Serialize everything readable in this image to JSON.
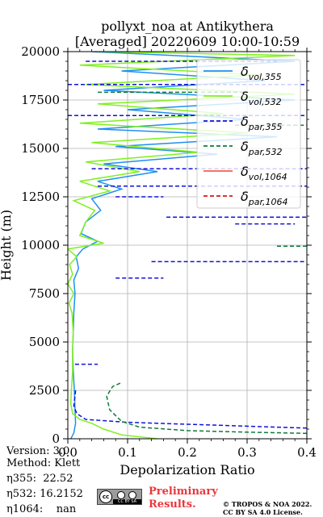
{
  "chart_data": {
    "type": "line",
    "title": "pollyxt_noa at Antikythera",
    "subtitle": "[Averaged] 20220609 10:00-10:59",
    "xlabel": "Depolarization Ratio",
    "ylabel": "Height (m)",
    "xlim": [
      0,
      0.4
    ],
    "ylim": [
      0,
      20000
    ],
    "xticks": [
      0.0,
      0.1,
      0.2,
      0.3,
      0.4
    ],
    "xtick_labels": [
      "0.0",
      "0.1",
      "0.2",
      "0.3",
      "0.4"
    ],
    "yticks": [
      0,
      2500,
      5000,
      7500,
      10000,
      12500,
      15000,
      17500,
      20000
    ],
    "ytick_labels": [
      "0",
      "2500",
      "5000",
      "7500",
      "10000",
      "12500",
      "15000",
      "17500",
      "20000"
    ],
    "grid": true,
    "legend_position": "top-right",
    "series": [
      {
        "name": "δ_vol,355",
        "sub": "vol,355",
        "color": "#1f8ff0",
        "dash": "solid",
        "points": [
          [
            0.005,
            0
          ],
          [
            0.01,
            300
          ],
          [
            0.013,
            800
          ],
          [
            0.012,
            1500
          ],
          [
            0.011,
            2500
          ],
          [
            0.009,
            3500
          ],
          [
            0.008,
            4500
          ],
          [
            0.009,
            5500
          ],
          [
            0.01,
            6500
          ],
          [
            0.012,
            7500
          ],
          [
            0.01,
            8200
          ],
          [
            0.018,
            8800
          ],
          [
            0.014,
            9400
          ],
          [
            0.025,
            9800
          ],
          [
            0.05,
            10200
          ],
          [
            0.022,
            10600
          ],
          [
            0.03,
            11200
          ],
          [
            0.055,
            11800
          ],
          [
            0.04,
            12400
          ],
          [
            0.09,
            12900
          ],
          [
            0.05,
            13300
          ],
          [
            0.15,
            13800
          ],
          [
            0.06,
            14200
          ],
          [
            0.25,
            14700
          ],
          [
            0.08,
            15100
          ],
          [
            0.35,
            15600
          ],
          [
            0.05,
            16000
          ],
          [
            0.3,
            16500
          ],
          [
            0.1,
            17000
          ],
          [
            0.38,
            17500
          ],
          [
            0.06,
            18000
          ],
          [
            0.33,
            18500
          ],
          [
            0.09,
            19000
          ],
          [
            0.38,
            19500
          ],
          [
            0.04,
            20000
          ]
        ]
      },
      {
        "name": "δ_vol,532",
        "sub": "vol,532",
        "color": "#7ff01f",
        "dash": "solid",
        "points": [
          [
            0.15,
            0
          ],
          [
            0.09,
            200
          ],
          [
            0.06,
            500
          ],
          [
            0.04,
            800
          ],
          [
            0.02,
            1000
          ],
          [
            0.008,
            1300
          ],
          [
            0.005,
            1800
          ],
          [
            0.006,
            2500
          ],
          [
            0.008,
            3500
          ],
          [
            0.008,
            4500
          ],
          [
            0.009,
            5500
          ],
          [
            0.007,
            6500
          ],
          [
            0.002,
            7000
          ],
          [
            0.01,
            7500
          ],
          [
            0.0,
            8000
          ],
          [
            0.008,
            8500
          ],
          [
            0.003,
            9000
          ],
          [
            0.015,
            9400
          ],
          [
            0.0,
            9800
          ],
          [
            0.06,
            10100
          ],
          [
            0.02,
            10500
          ],
          [
            0.03,
            11200
          ],
          [
            0.045,
            11800
          ],
          [
            0.01,
            12300
          ],
          [
            0.07,
            12800
          ],
          [
            0.02,
            13300
          ],
          [
            0.12,
            13800
          ],
          [
            0.03,
            14300
          ],
          [
            0.22,
            14800
          ],
          [
            0.04,
            15300
          ],
          [
            0.3,
            15800
          ],
          [
            0.02,
            16300
          ],
          [
            0.26,
            16800
          ],
          [
            0.05,
            17300
          ],
          [
            0.38,
            17800
          ],
          [
            0.03,
            18300
          ],
          [
            0.32,
            18800
          ],
          [
            0.02,
            19300
          ],
          [
            0.38,
            19800
          ],
          [
            0.05,
            20000
          ]
        ]
      },
      {
        "name": "δ_par,355",
        "sub": "par,355",
        "color": "#1212d8",
        "dash": "dashed",
        "points": [
          [
            0.4,
            550
          ],
          [
            0.25,
            700
          ],
          [
            0.1,
            850
          ],
          [
            0.03,
            1000
          ],
          [
            0.015,
            1300
          ],
          [
            0.01,
            1700
          ],
          [
            0.012,
            2200
          ],
          [
            0.013,
            2500
          ]
        ]
      },
      {
        "name": "δ_par,532",
        "sub": "par,532",
        "color": "#0f7a3c",
        "dash": "dashed",
        "points": [
          [
            0.4,
            280
          ],
          [
            0.3,
            340
          ],
          [
            0.2,
            420
          ],
          [
            0.12,
            600
          ],
          [
            0.09,
            900
          ],
          [
            0.07,
            1500
          ],
          [
            0.065,
            2200
          ],
          [
            0.075,
            2700
          ],
          [
            0.09,
            2900
          ]
        ]
      },
      {
        "name": "δ_vol,1064",
        "sub": "vol,1064",
        "color": "#f0604a",
        "dash": "solid",
        "points": []
      },
      {
        "name": "δ_par,1064",
        "sub": "par,1064",
        "color": "#d61a1a",
        "dash": "dashed",
        "points": []
      }
    ],
    "segments": [
      {
        "series": 2,
        "x0": 0.14,
        "x1": 0.4,
        "y": 9150
      },
      {
        "series": 2,
        "x0": 0.28,
        "x1": 0.38,
        "y": 11100
      },
      {
        "series": 2,
        "x0": 0.165,
        "x1": 0.4,
        "y": 11450
      },
      {
        "series": 2,
        "x0": 0.08,
        "x1": 0.16,
        "y": 12500
      },
      {
        "series": 2,
        "x0": 0.05,
        "x1": 0.4,
        "y": 13050
      },
      {
        "series": 2,
        "x0": 0.04,
        "x1": 0.4,
        "y": 13950
      },
      {
        "series": 2,
        "x0": 0.08,
        "x1": 0.16,
        "y": 8300
      },
      {
        "series": 2,
        "x0": 0.012,
        "x1": 0.05,
        "y": 3850
      },
      {
        "series": 2,
        "x0": 0.0,
        "x1": 0.4,
        "y": 16700
      },
      {
        "series": 2,
        "x0": 0.0,
        "x1": 0.4,
        "y": 18300
      },
      {
        "series": 2,
        "x0": 0.03,
        "x1": 0.35,
        "y": 19500
      },
      {
        "series": 3,
        "x0": 0.35,
        "x1": 0.4,
        "y": 9950
      },
      {
        "series": 3,
        "x0": 0.28,
        "x1": 0.4,
        "y": 16200
      },
      {
        "series": 3,
        "x0": 0.05,
        "x1": 0.3,
        "y": 17900
      }
    ]
  },
  "footer": {
    "version": "Version: 3.0",
    "method": "Method: Klett",
    "eta355": "η355:  22.52",
    "eta532": "η532: 16.2152",
    "eta1064": "η1064:    nan",
    "license_badge": "cc by sa",
    "preliminary": "Preliminary",
    "results": "Results.",
    "copyright": "© TROPOS & NOA 2022.",
    "license": "CC BY SA 4.0 License."
  }
}
